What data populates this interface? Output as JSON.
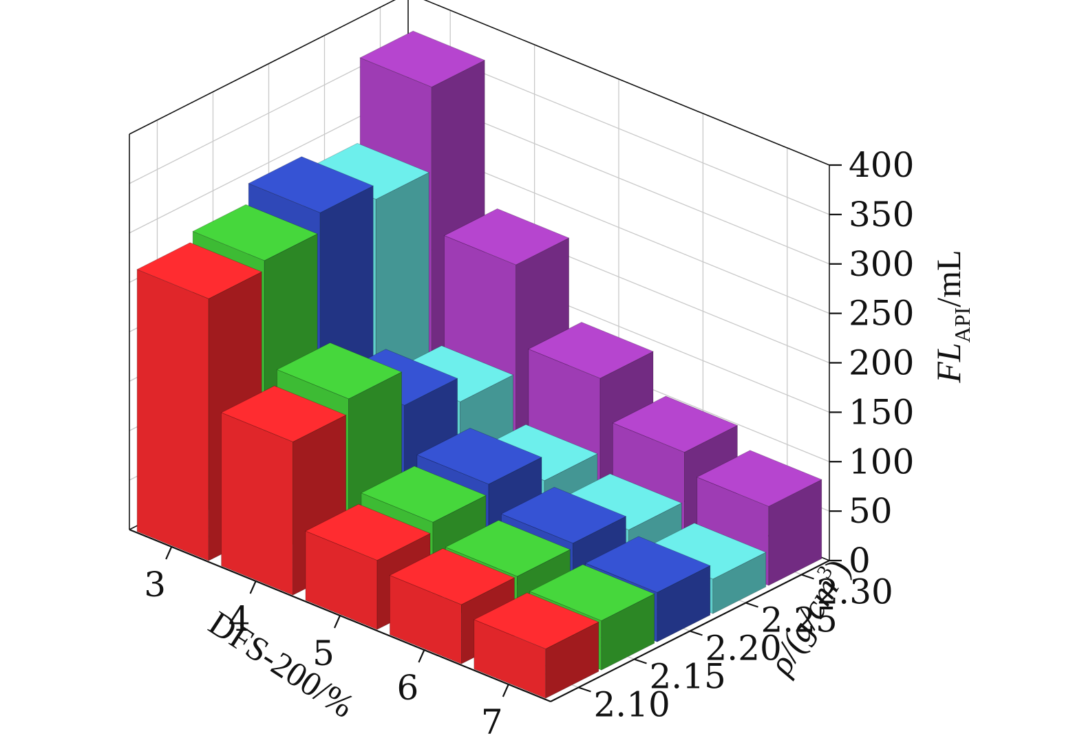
{
  "chart_data": {
    "type": "bar",
    "subtype": "3d-bar",
    "x_axis": {
      "label": "DFS-200/%",
      "categories": [
        "3",
        "4",
        "5",
        "6",
        "7"
      ]
    },
    "y_axis": {
      "label_main": "ρ/(g/cm",
      "label_sup": "3",
      "label_end": ")",
      "categories": [
        "2.10",
        "2.15",
        "2.20",
        "2.25",
        "2.30"
      ]
    },
    "z_axis": {
      "label_main": "FL",
      "label_sub": "API",
      "label_end": "/mL",
      "ticks": [
        "0",
        "50",
        "100",
        "150",
        "200",
        "250",
        "300",
        "350",
        "400"
      ],
      "zlim": [
        0,
        400
      ]
    },
    "grid": true,
    "series": [
      {
        "name": "2.10",
        "color": "#e0262a",
        "values": [
          265,
          155,
          70,
          60,
          50
        ]
      },
      {
        "name": "2.15",
        "color": "#3dbb34",
        "values": [
          275,
          170,
          80,
          60,
          50
        ]
      },
      {
        "name": "2.20",
        "color": "#2f48b8",
        "values": [
          295,
          135,
          90,
          65,
          50
        ]
      },
      {
        "name": "2.25",
        "color": "#5fd0cd",
        "values": [
          280,
          110,
          65,
          50,
          35
        ]
      },
      {
        "name": "2.30",
        "color": "#9e3cb4",
        "values": [
          365,
          220,
          140,
          100,
          80
        ]
      }
    ]
  }
}
